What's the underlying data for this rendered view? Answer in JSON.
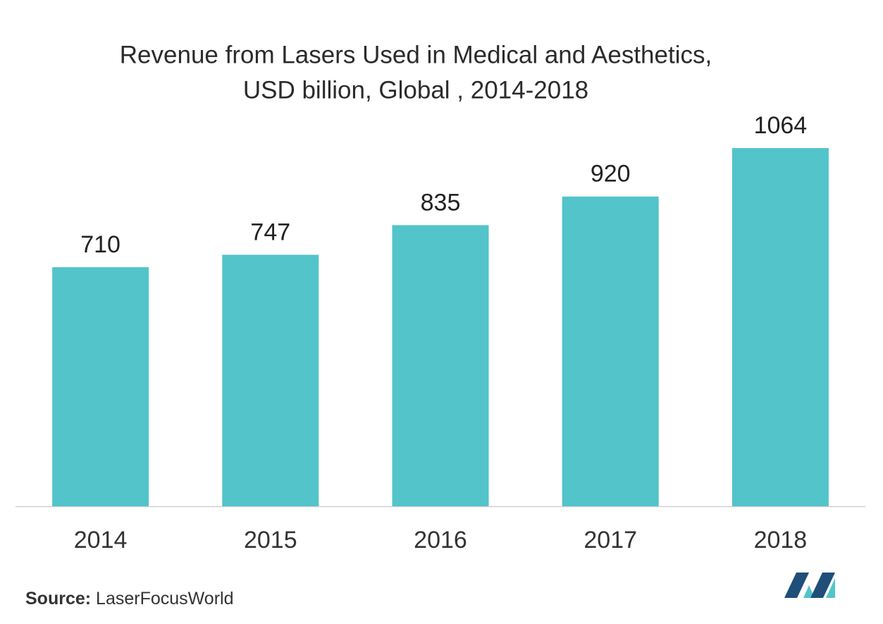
{
  "chart_data": {
    "type": "bar",
    "title": [
      "Revenue from Lasers Used in Medical and Aesthetics,",
      "USD billion, Global , 2014-2018"
    ],
    "categories": [
      "2014",
      "2015",
      "2016",
      "2017",
      "2018"
    ],
    "values": [
      710,
      747,
      835,
      920,
      1064
    ],
    "color": "#52c4ca",
    "source": {
      "label": "Source:",
      "text": "LaserFocusWorld"
    }
  }
}
